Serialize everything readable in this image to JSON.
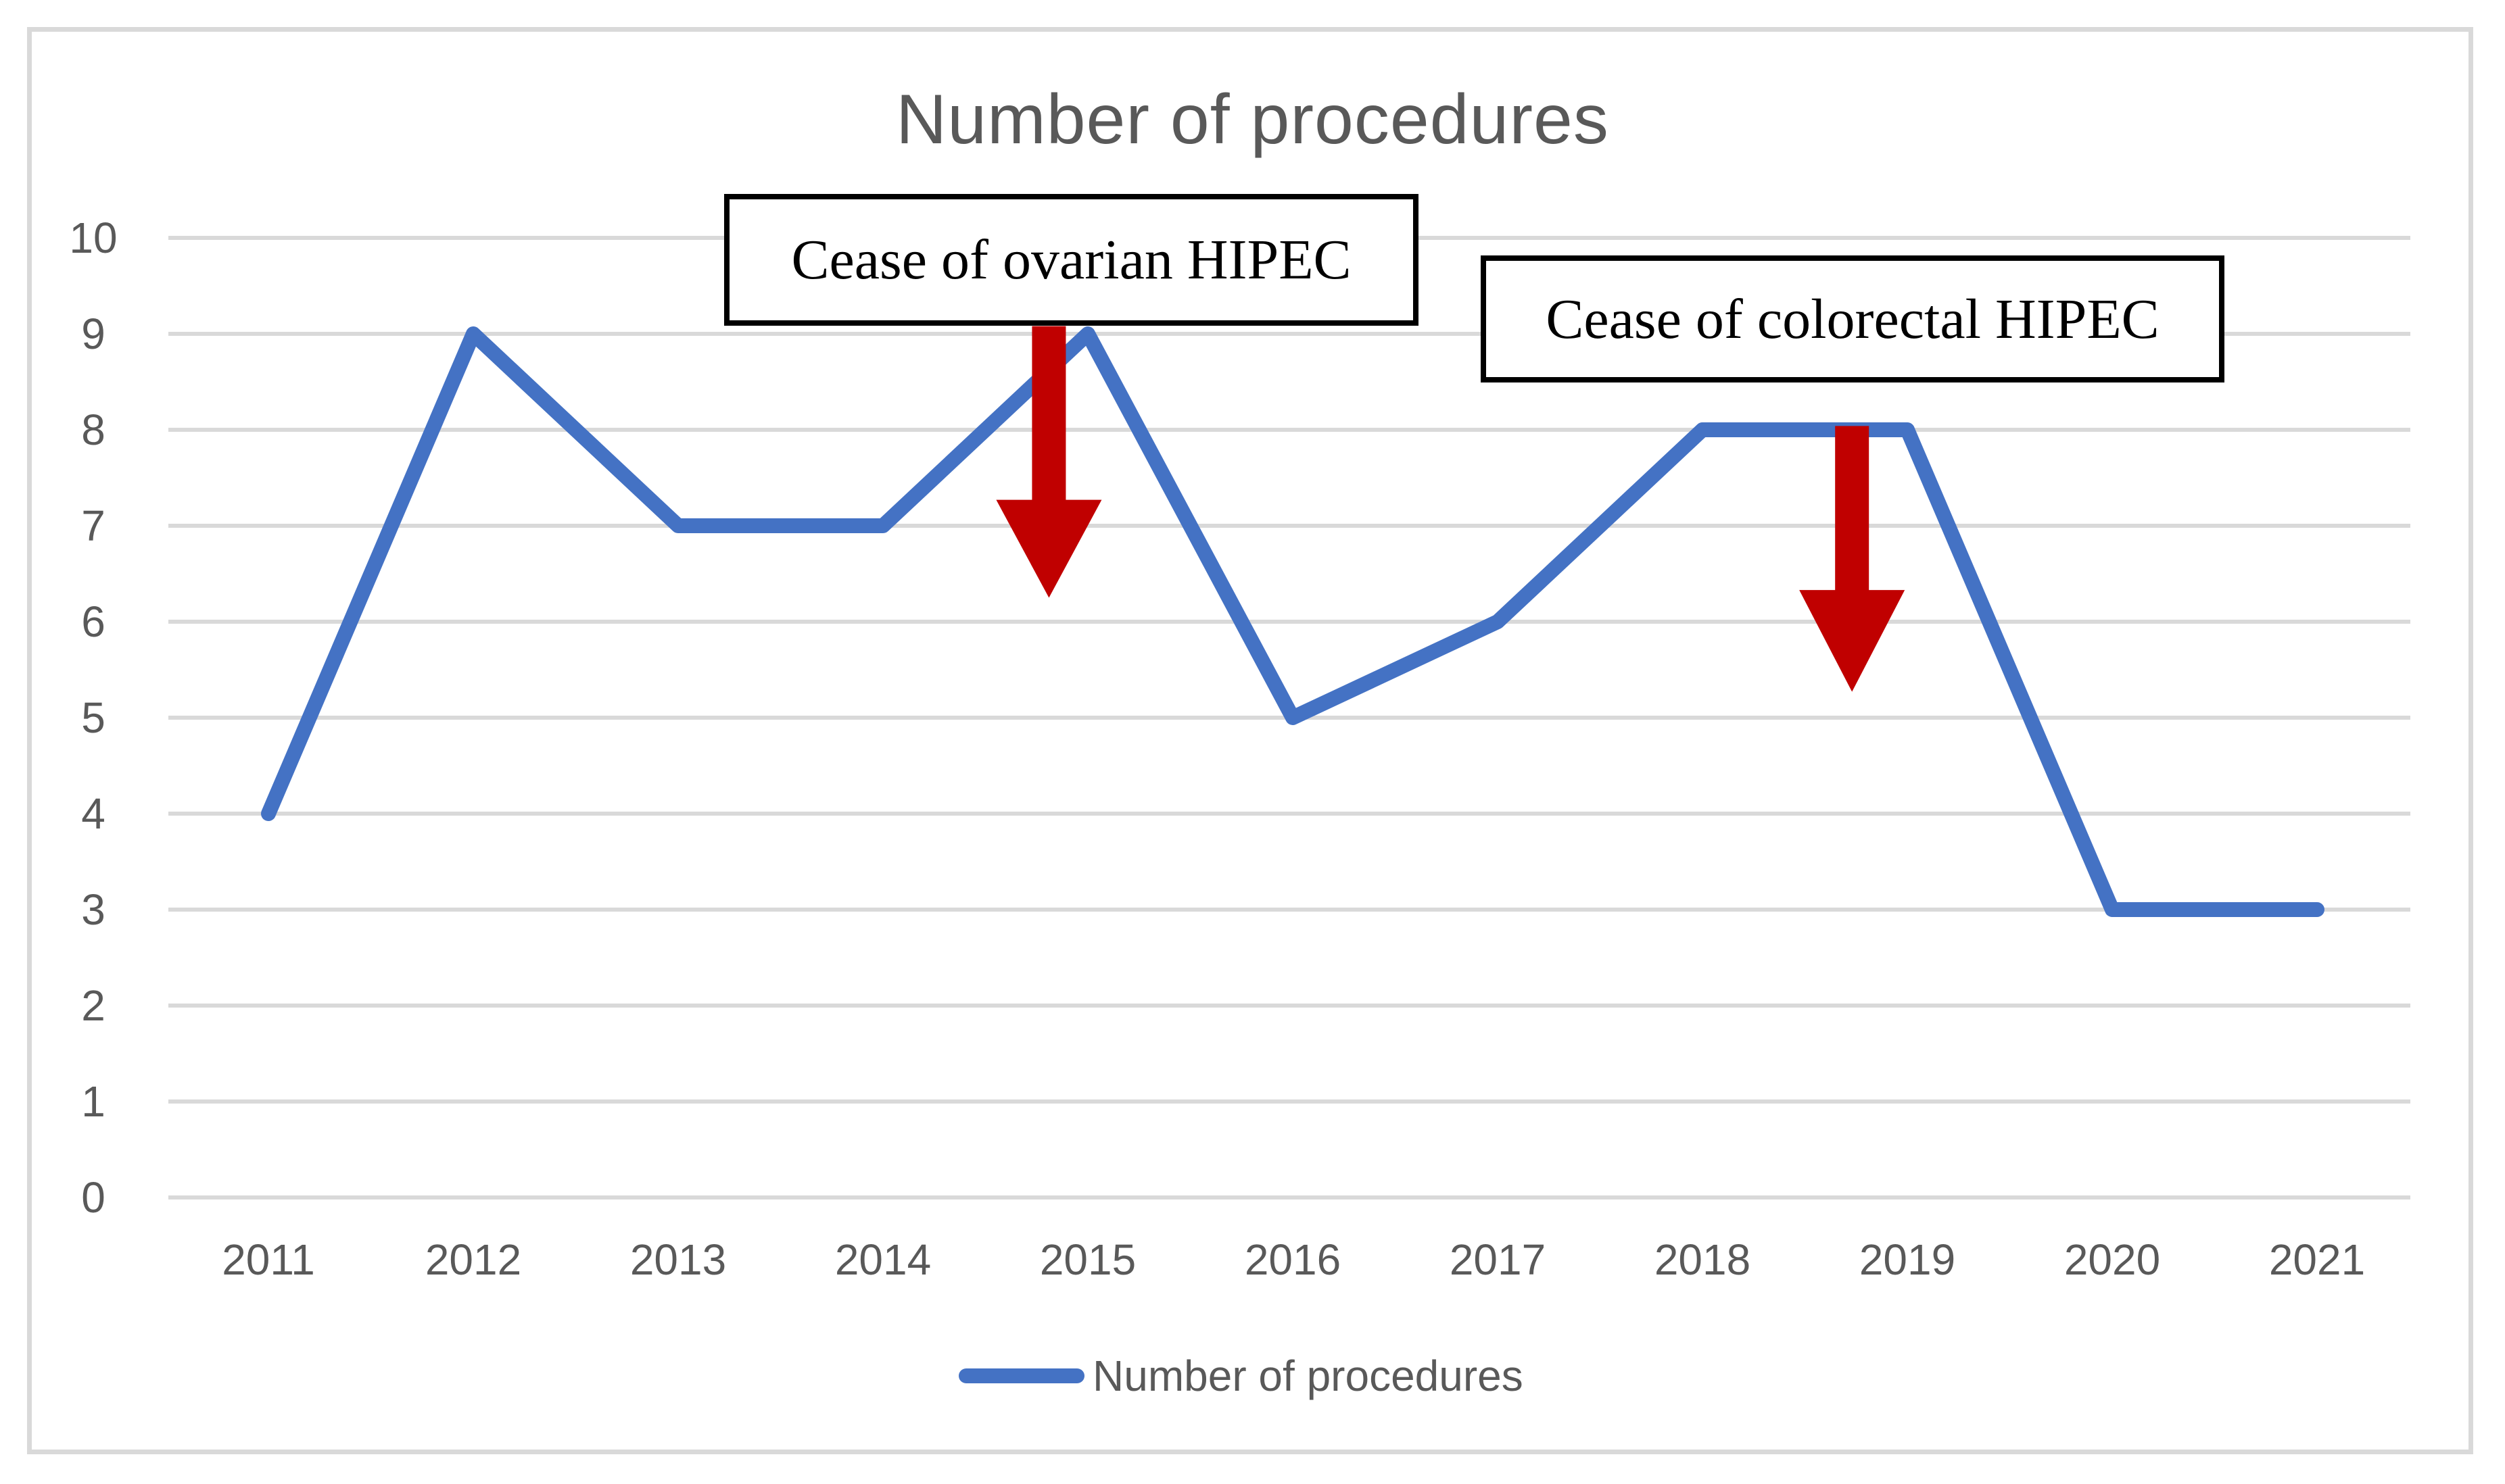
{
  "chart_data": {
    "type": "line",
    "title": "Number of procedures",
    "categories": [
      "2011",
      "2012",
      "2013",
      "2014",
      "2015",
      "2016",
      "2017",
      "2018",
      "2019",
      "2020",
      "2021"
    ],
    "series": [
      {
        "name": "Number of procedures",
        "values": [
          4,
          9,
          7,
          7,
          9,
          5,
          6,
          8,
          8,
          3,
          3
        ]
      }
    ],
    "xlabel": "",
    "ylabel": "",
    "ylim": [
      0,
      10
    ],
    "yticks": [
      0,
      1,
      2,
      3,
      4,
      5,
      6,
      7,
      8,
      9,
      10
    ],
    "grid": "horizontal",
    "legend_position": "bottom",
    "annotations": [
      {
        "label": "Cease of ovarian HIPEC",
        "arrow": {
          "x_index": 3.81,
          "value_start": 9.08,
          "value_head_start": 7.27,
          "value_tip": 6.25
        }
      },
      {
        "label": "Cease of colorectal HIPEC",
        "arrow": {
          "x_index": 7.73,
          "value_start": 8.04,
          "value_head_start": 6.33,
          "value_tip": 5.27
        }
      }
    ]
  },
  "colors": {
    "line": "#4472C4",
    "arrow": "#C00000",
    "gridline": "#D9D9D9",
    "axis_text": "#595959",
    "title_text": "#595959",
    "annotation_border": "#000000",
    "annotation_text": "#000000",
    "figure_border": "#D9D9D9",
    "background": "#FFFFFF"
  }
}
